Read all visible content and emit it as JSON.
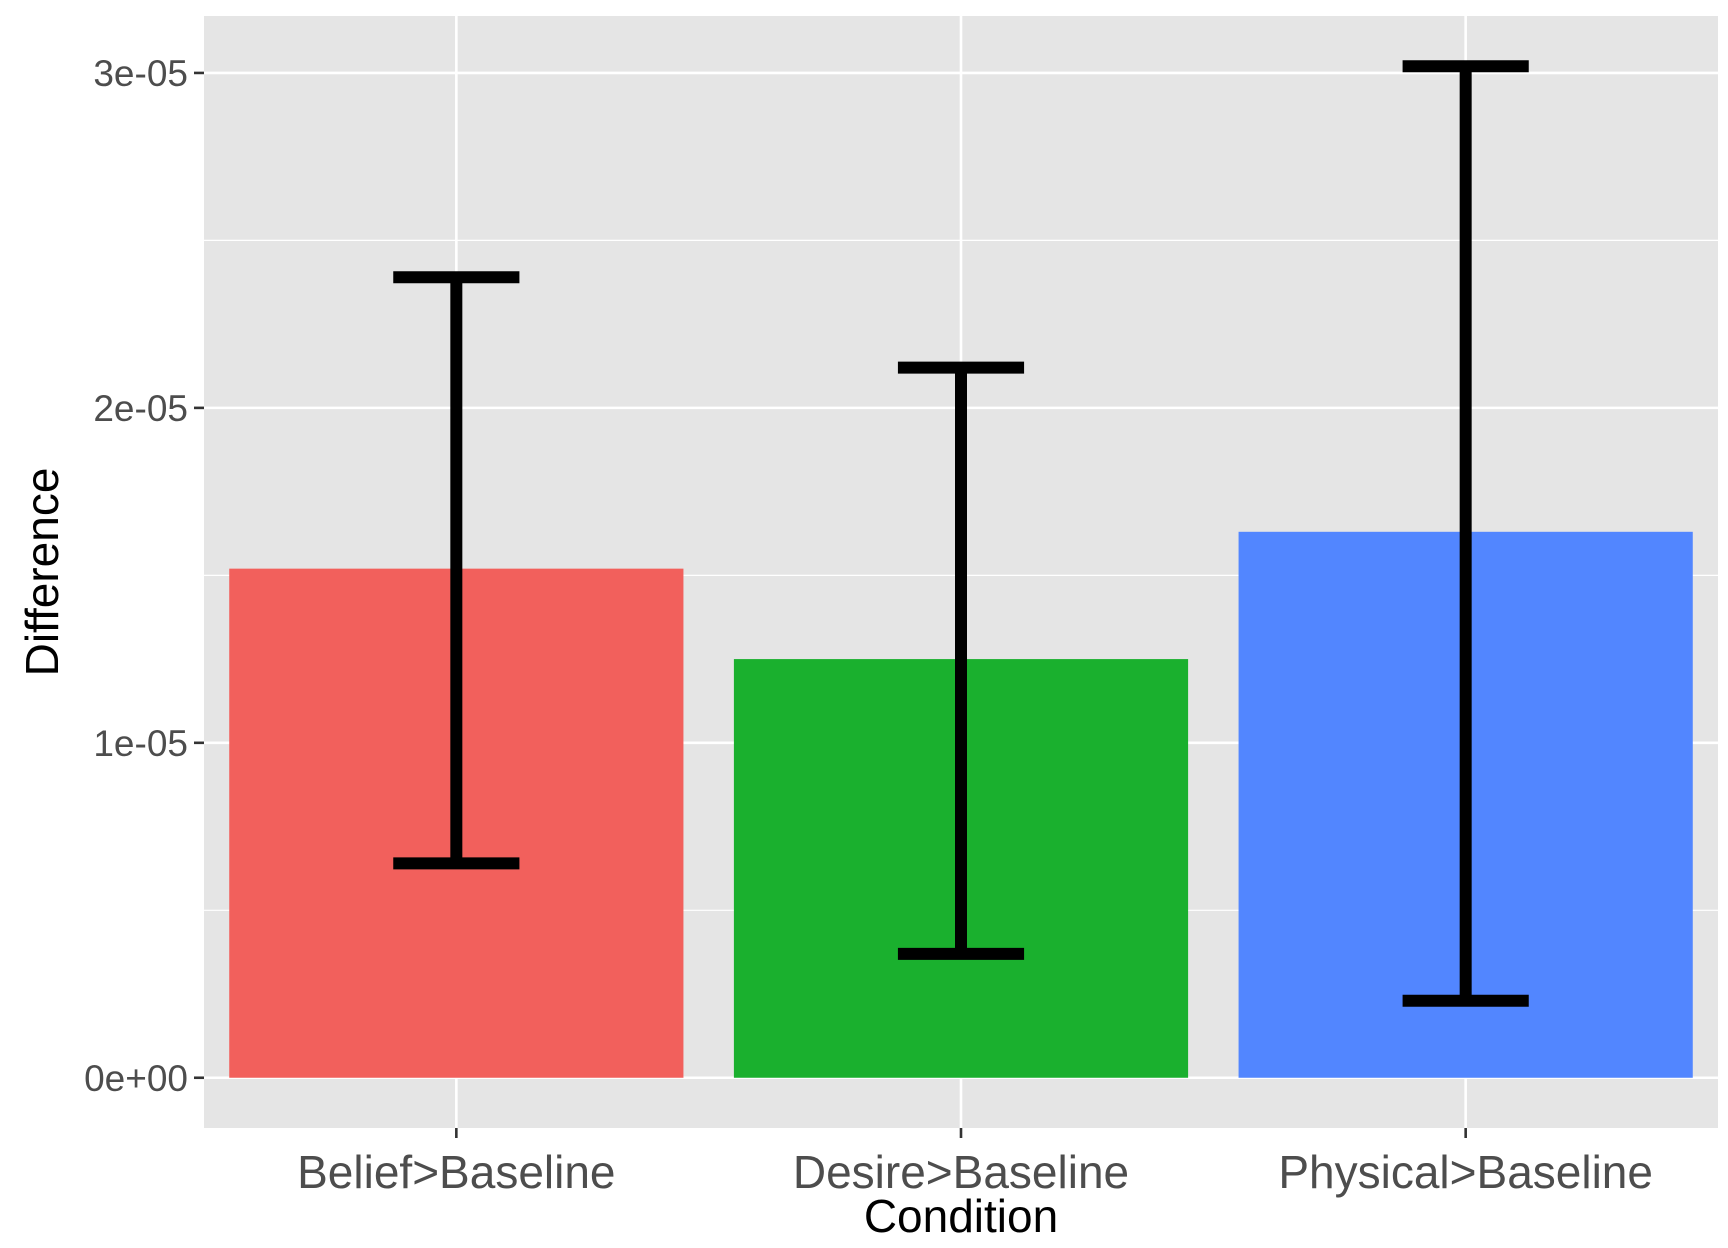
{
  "chart_data": {
    "type": "bar",
    "title": "",
    "xlabel": "Condition",
    "ylabel": "Difference",
    "categories": [
      "Belief>Baseline",
      "Desire>Baseline",
      "Physical>Baseline"
    ],
    "values": [
      1.52e-05,
      1.25e-05,
      1.63e-05
    ],
    "error_low": [
      6.4e-06,
      3.7e-06,
      2.3e-06
    ],
    "error_high": [
      2.39e-05,
      2.12e-05,
      3.02e-05
    ],
    "colors": [
      "#F8766D",
      "#00BA38",
      "#619CFF"
    ],
    "fill_colors": [
      "#F2605C",
      "#1AB02E",
      "#5286FF"
    ],
    "ylim": [
      -1.5e-06,
      3.17e-05
    ],
    "yticks": [
      0,
      1e-05,
      2e-05,
      3e-05
    ],
    "ytick_labels": [
      "0e+00",
      "1e-05",
      "2e-05",
      "3e-05"
    ],
    "grid": true,
    "legend": "none",
    "panel_background": "#E5E5E5",
    "gridline_color": "#FFFFFF",
    "errorbar_color": "#000000"
  }
}
